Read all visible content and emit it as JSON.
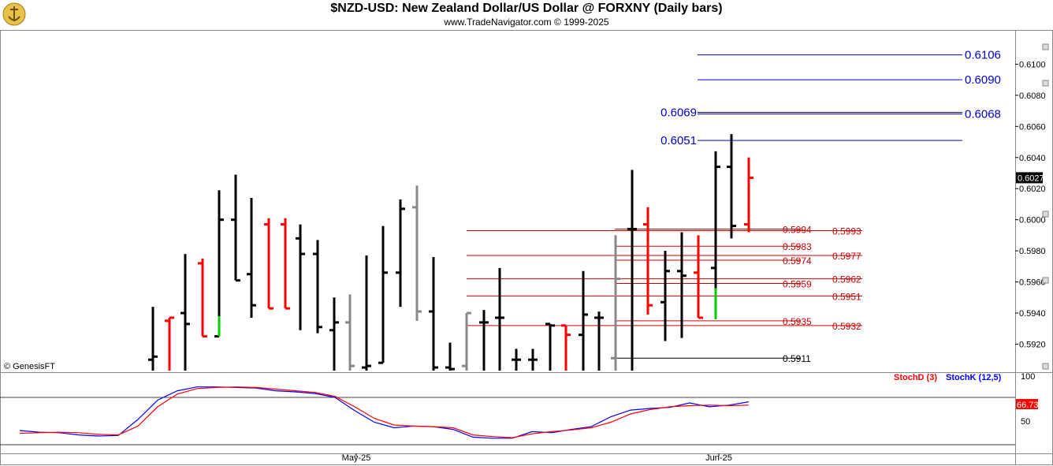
{
  "header": {
    "title": "$NZD-USD:  New Zealand Dollar/US Dollar @ FORXNY  (Daily bars)",
    "subtitle": "www.TradeNavigator.com © 1999-2025",
    "watermark": "© GenesisFT"
  },
  "colors": {
    "bar_default": "#000000",
    "bar_down": "#ff0000",
    "bar_up": "#00cc00",
    "bar_muted": "#888888",
    "target_line": "#0000cc",
    "support_line": "#cc0000",
    "stoch_k": "#0000ff",
    "stoch_d": "#ff0000"
  },
  "chart_data": [
    {
      "type": "ohlc",
      "title": "$NZD-USD:  New Zealand Dollar/US Dollar @ FORXNY  (Daily bars)",
      "ylim": [
        0.5902,
        0.6122
      ],
      "y_ticks": [
        "0.6100",
        "0.6080",
        "0.6060",
        "0.6040",
        "0.6020",
        "0.6000",
        "0.5980",
        "0.5960",
        "0.5940",
        "0.5920"
      ],
      "x_labels": [
        {
          "label": "May-25",
          "index": 11
        },
        {
          "label": "Jun-25",
          "index": 41
        }
      ],
      "last_price": "0.6027",
      "bars": [
        {
          "o": 0.591,
          "h": 0.5944,
          "l": 0.5903,
          "c": 0.5912,
          "color": "black"
        },
        {
          "o": 0.5935,
          "h": 0.5937,
          "l": 0.5903,
          "c": 0.5937,
          "color": "red"
        },
        {
          "o": 0.594,
          "h": 0.5978,
          "l": 0.5903,
          "c": 0.5933,
          "color": "black"
        },
        {
          "o": 0.5972,
          "h": 0.5975,
          "l": 0.5925,
          "c": 0.5925,
          "color": "red"
        },
        {
          "o": 0.5925,
          "h": 0.6019,
          "l": 0.5925,
          "c": 0.6,
          "color": "black",
          "up_segment": [
            0.5925,
            0.5938
          ]
        },
        {
          "o": 0.6,
          "h": 0.6029,
          "l": 0.5961,
          "c": 0.5961,
          "color": "black"
        },
        {
          "o": 0.5965,
          "h": 0.6014,
          "l": 0.5937,
          "c": 0.5945,
          "color": "black"
        },
        {
          "o": 0.5997,
          "h": 0.6001,
          "l": 0.5943,
          "c": 0.5943,
          "color": "red"
        },
        {
          "o": 0.5997,
          "h": 0.6001,
          "l": 0.5943,
          "c": 0.5943,
          "color": "red"
        },
        {
          "o": 0.5988,
          "h": 0.5997,
          "l": 0.5929,
          "c": 0.5978,
          "color": "black"
        },
        {
          "o": 0.5978,
          "h": 0.5987,
          "l": 0.5927,
          "c": 0.5931,
          "color": "black"
        },
        {
          "o": 0.5929,
          "h": 0.595,
          "l": 0.5903,
          "c": 0.5934,
          "color": "black"
        },
        {
          "o": 0.5934,
          "h": 0.5952,
          "l": 0.5903,
          "c": 0.5906,
          "color": "gray"
        },
        {
          "o": 0.5905,
          "h": 0.5977,
          "l": 0.5903,
          "c": 0.5906,
          "color": "black"
        },
        {
          "o": 0.5908,
          "h": 0.5996,
          "l": 0.5908,
          "c": 0.5966,
          "color": "black"
        },
        {
          "o": 0.5966,
          "h": 0.6013,
          "l": 0.5944,
          "c": 0.6007,
          "color": "black"
        },
        {
          "o": 0.6008,
          "h": 0.6022,
          "l": 0.5935,
          "c": 0.5941,
          "color": "gray"
        },
        {
          "o": 0.5941,
          "h": 0.5976,
          "l": 0.5903,
          "c": 0.5905,
          "color": "black"
        },
        {
          "o": 0.5905,
          "h": 0.5921,
          "l": 0.5903,
          "c": 0.5904,
          "color": "black"
        },
        {
          "o": 0.5906,
          "h": 0.594,
          "l": 0.5903,
          "c": 0.594,
          "color": "gray"
        },
        {
          "o": 0.5934,
          "h": 0.5942,
          "l": 0.5903,
          "c": 0.5934,
          "color": "black"
        },
        {
          "o": 0.5937,
          "h": 0.5969,
          "l": 0.5903,
          "c": 0.5937,
          "color": "black"
        },
        {
          "o": 0.591,
          "h": 0.5917,
          "l": 0.5903,
          "c": 0.591,
          "color": "black"
        },
        {
          "o": 0.591,
          "h": 0.5917,
          "l": 0.5903,
          "c": 0.591,
          "color": "black"
        },
        {
          "o": 0.5933,
          "h": 0.5933,
          "l": 0.5903,
          "c": 0.5932,
          "color": "black"
        },
        {
          "o": 0.5932,
          "h": 0.5932,
          "l": 0.5903,
          "c": 0.5926,
          "color": "red"
        },
        {
          "o": 0.5926,
          "h": 0.5967,
          "l": 0.5903,
          "c": 0.5939,
          "color": "black"
        },
        {
          "o": 0.5937,
          "h": 0.5941,
          "l": 0.5903,
          "c": 0.5937,
          "color": "black"
        },
        {
          "o": 0.5911,
          "h": 0.599,
          "l": 0.5903,
          "c": 0.5962,
          "color": "gray"
        },
        {
          "o": 0.5994,
          "h": 0.6032,
          "l": 0.5903,
          "c": 0.5994,
          "color": "black"
        },
        {
          "o": 0.5997,
          "h": 0.6008,
          "l": 0.5939,
          "c": 0.5945,
          "color": "red"
        },
        {
          "o": 0.5947,
          "h": 0.598,
          "l": 0.5922,
          "c": 0.5967,
          "color": "black"
        },
        {
          "o": 0.5967,
          "h": 0.5992,
          "l": 0.5924,
          "c": 0.5964,
          "color": "black"
        },
        {
          "o": 0.5966,
          "h": 0.599,
          "l": 0.5937,
          "c": 0.5937,
          "color": "red"
        },
        {
          "o": 0.5969,
          "h": 0.6044,
          "l": 0.5936,
          "c": 0.6034,
          "color": "black",
          "up_segment": [
            0.5936,
            0.5956
          ]
        },
        {
          "o": 0.6034,
          "h": 0.6055,
          "l": 0.5988,
          "c": 0.5996,
          "color": "black"
        },
        {
          "o": 0.5997,
          "h": 0.604,
          "l": 0.5992,
          "c": 0.6027,
          "color": "red"
        }
      ],
      "bar_x_positions": [
        194,
        215,
        235,
        257,
        278,
        299,
        319,
        341,
        362,
        381,
        403,
        424,
        444,
        465,
        486,
        508,
        529,
        550,
        571,
        592,
        614,
        634,
        655,
        676,
        698,
        718,
        740,
        760,
        781,
        802,
        822,
        844,
        865,
        886,
        908,
        928,
        950
      ],
      "levels": [
        {
          "label": "0.6106",
          "value": 0.6106,
          "color": "blue",
          "label_side": "right"
        },
        {
          "label": "0.6090",
          "value": 0.609,
          "color": "blue",
          "label_side": "right"
        },
        {
          "label": "0.6068",
          "value": 0.6068,
          "color": "blue",
          "label_side": "right"
        },
        {
          "label": "0.6069",
          "value": 0.6069,
          "color": "blue",
          "label_side": "left"
        },
        {
          "label": "0.6051",
          "value": 0.6051,
          "color": "blue",
          "label_side": "left"
        },
        {
          "label": "0.5994",
          "value": 0.5994,
          "color": "red",
          "label_side": "mid"
        },
        {
          "label": "0.5993",
          "value": 0.5993,
          "color": "red",
          "label_side": "right"
        },
        {
          "label": "0.5983",
          "value": 0.5983,
          "color": "red",
          "label_side": "mid"
        },
        {
          "label": "0.5977",
          "value": 0.5977,
          "color": "red",
          "label_side": "right"
        },
        {
          "label": "0.5974",
          "value": 0.5974,
          "color": "red",
          "label_side": "mid"
        },
        {
          "label": "0.5962",
          "value": 0.5962,
          "color": "red",
          "label_side": "right"
        },
        {
          "label": "0.5959",
          "value": 0.5959,
          "color": "red",
          "label_side": "mid"
        },
        {
          "label": "0.5951",
          "value": 0.5951,
          "color": "red",
          "label_side": "right"
        },
        {
          "label": "0.5935",
          "value": 0.5935,
          "color": "red",
          "label_side": "mid"
        },
        {
          "label": "0.5932",
          "value": 0.5932,
          "color": "red",
          "label_side": "right"
        },
        {
          "label": "0.5911",
          "value": 0.5911,
          "color": "black",
          "label_side": "mid"
        }
      ]
    },
    {
      "type": "line",
      "ylim": [
        0,
        100
      ],
      "y_ticks": [
        "100",
        "50"
      ],
      "legend": [
        "StochD (3)",
        "StochK (12,5)"
      ],
      "last_value": "66.73",
      "series": [
        {
          "name": "StochK (12,5)",
          "values": [
            20,
            17,
            16,
            12,
            10,
            11,
            40,
            75,
            92,
            99,
            99,
            98,
            97,
            92,
            90,
            87,
            80,
            56,
            35,
            25,
            28,
            27,
            22,
            8,
            6,
            6,
            18,
            16,
            22,
            27,
            45,
            57,
            60,
            62,
            70,
            63,
            66,
            72
          ]
        },
        {
          "name": "StochD (3)",
          "values": [
            15,
            16,
            17,
            16,
            13,
            12,
            28,
            63,
            86,
            96,
            98,
            99,
            98,
            95,
            92,
            89,
            82,
            63,
            42,
            30,
            28,
            27,
            25,
            12,
            9,
            7,
            14,
            18,
            21,
            25,
            35,
            50,
            58,
            63,
            65,
            66,
            65,
            66
          ]
        }
      ]
    }
  ]
}
